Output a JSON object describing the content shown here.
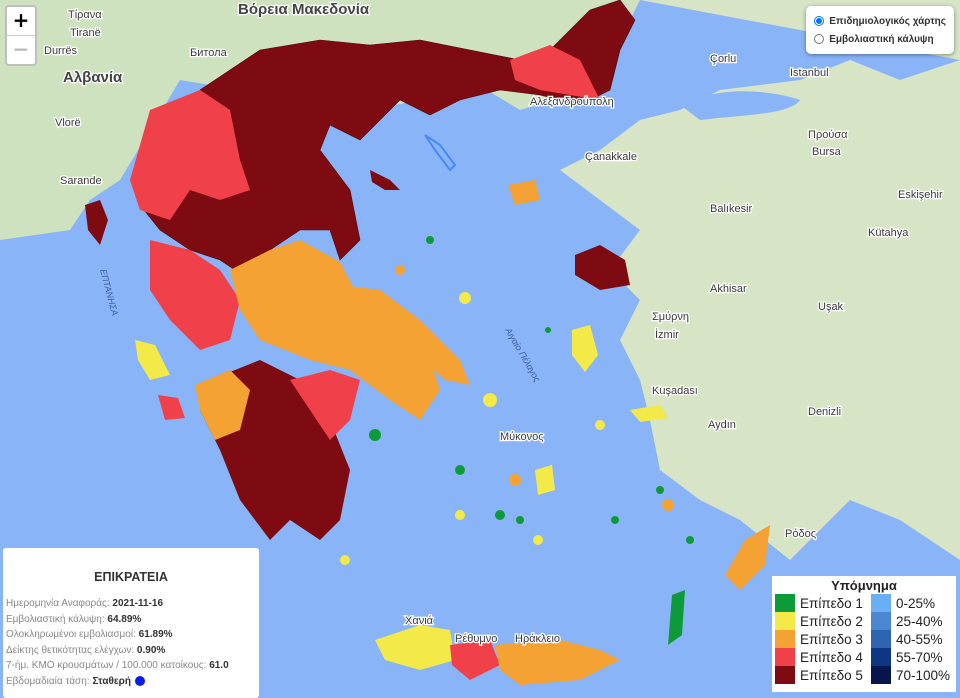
{
  "map_controls": {
    "zoom_in": "+",
    "zoom_out": "−"
  },
  "layer_selector": {
    "options": [
      {
        "label": "Επιδημιολογικός χάρτης",
        "selected": true
      },
      {
        "label": "Εμβολιαστική κάλυψη",
        "selected": false
      }
    ]
  },
  "map_labels": {
    "north_macedonia": "Βόρεια Μακεδονία",
    "albania": "Αλβανία",
    "tirana": "Tiranë",
    "tirana_gr": "Τίρανα",
    "durres": "Durrës",
    "vlore": "Vlorë",
    "sarande": "Sarande",
    "bitola": "Битола",
    "istanbul": "Istanbul",
    "corlu": "Çorlu",
    "bursa": "Bursa",
    "bursa_gr": "Προύσα",
    "eskisehir": "Eskişehir",
    "kutahya": "Kütahya",
    "balikesir": "Balıkesir",
    "izmir": "İzmir",
    "izmir_gr": "Σμύρνη",
    "manisa": "Akhisar",
    "usak": "Uşak",
    "aydin": "Aydın",
    "denizli": "Denizli",
    "kusadasi": "Kuşadası",
    "rhodes": "Ρόδος",
    "chania": "Χανιά",
    "rethymno": "Ρέθυμνο",
    "heraklion": "Ηράκλειο",
    "mykonos": "Μύκονος",
    "alexandroupoli": "Αλεξανδρούπολη",
    "canakkale": "Çanakkale",
    "aegean": "Αιγαίο Πέλαγος",
    "ionian": "ΕΠΤΑΝΗΣΑ"
  },
  "info_panel": {
    "title": "ΕΠΙΚΡΑΤΕΙΑ",
    "rows": [
      {
        "label": "Ημερομηνία Αναφοράς: ",
        "value": "2021-11-16"
      },
      {
        "label": "Εμβολιαστική κάλυψη: ",
        "value": "64.89%"
      },
      {
        "label": "Ολοκληρωμένοι εμβολιασμοί: ",
        "value": "61.89%"
      },
      {
        "label": "Δείκτης θετικότητας ελέγχων: ",
        "value": "0.90%"
      },
      {
        "label": "7-ήμ. ΚΜΟ κρουσμάτων / 100.000 κατοίκους: ",
        "value": "61.0"
      },
      {
        "label": "Εβδομαδιαία τάση: ",
        "value": "Σταθερή"
      }
    ],
    "trend_color": "#0a1fe6"
  },
  "legend": {
    "title": "Υπόμνημα",
    "levels": [
      {
        "label": "Επίπεδο 1",
        "color": "#0d9b3a"
      },
      {
        "label": "Επίπεδο 2",
        "color": "#f3ea4a"
      },
      {
        "label": "Επίπεδο 3",
        "color": "#f4a233"
      },
      {
        "label": "Επίπεδο 4",
        "color": "#f0404a"
      },
      {
        "label": "Επίπεδο 5",
        "color": "#7e0a12"
      }
    ],
    "coverage": [
      {
        "label": "0-25%",
        "color": "#6aaef5"
      },
      {
        "label": "25-40%",
        "color": "#4a87d0"
      },
      {
        "label": "40-55%",
        "color": "#2f65b0"
      },
      {
        "label": "55-70%",
        "color": "#0e3682"
      },
      {
        "label": "70-100%",
        "color": "#06154d"
      }
    ]
  }
}
